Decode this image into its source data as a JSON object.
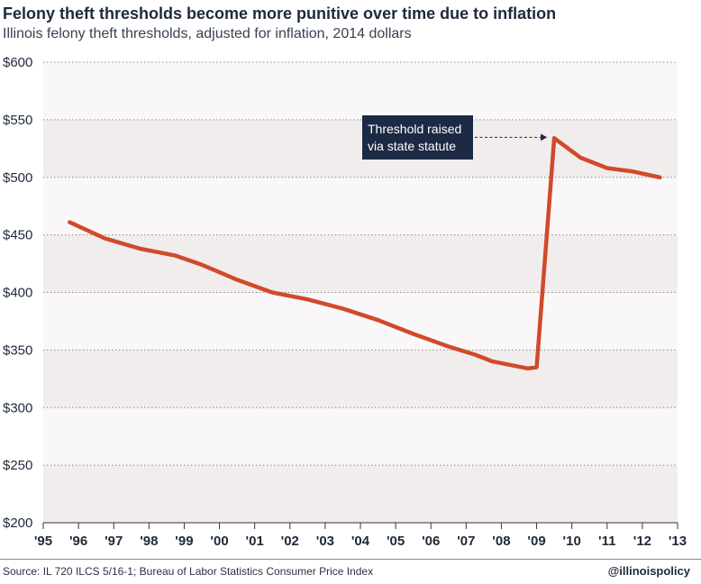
{
  "title": "Felony theft thresholds become more punitive over time due to inflation",
  "subtitle": "Illinois felony theft thresholds, adjusted for inflation, 2014 dollars",
  "source": "Source: IL 720 ILCS 5/16-1; Bureau of Labor Statistics Consumer Price Index",
  "handle": "@illinoispolicy",
  "chart_data": {
    "type": "line",
    "title": "Felony theft thresholds become more punitive over time due to inflation",
    "subtitle": "Illinois felony theft thresholds, adjusted for inflation, 2014 dollars",
    "xlabel": "",
    "ylabel": "",
    "x_ticks": [
      "'95",
      "'96",
      "'97",
      "'98",
      "'99",
      "'00",
      "'01",
      "'02",
      "'03",
      "'04",
      "'05",
      "'06",
      "'07",
      "'08",
      "'09",
      "'10",
      "'11",
      "'12",
      "'13"
    ],
    "x_range": [
      1995,
      2013
    ],
    "y_ticks": [
      "$200",
      "$250",
      "$300",
      "$350",
      "$400",
      "$450",
      "$500",
      "$550",
      "$600"
    ],
    "ylim": [
      200,
      600
    ],
    "grid": true,
    "line_color": "#d04a2b",
    "band_colors": [
      "#f1eded",
      "#f9f7f7"
    ],
    "series": [
      {
        "x": [
          1995.75,
          1996.75,
          1997.75,
          1998.75,
          1999.5,
          2000.5,
          2001.5,
          2002.5,
          2003.5,
          2004.5,
          2005.5,
          2006.5,
          2007.25,
          2007.75,
          2008.75,
          2009.0,
          2009.5,
          2010.25,
          2011.0,
          2011.75,
          2012.5
        ],
        "y": [
          461,
          447,
          438,
          432,
          424,
          411,
          400,
          394,
          386,
          376,
          364,
          353,
          346,
          340,
          334,
          335,
          534,
          517,
          508,
          505,
          500
        ]
      }
    ],
    "annotations": [
      {
        "text_lines": [
          "Threshold raised",
          "via state statute"
        ],
        "target_x": 2009.5,
        "target_y": 534
      }
    ]
  }
}
